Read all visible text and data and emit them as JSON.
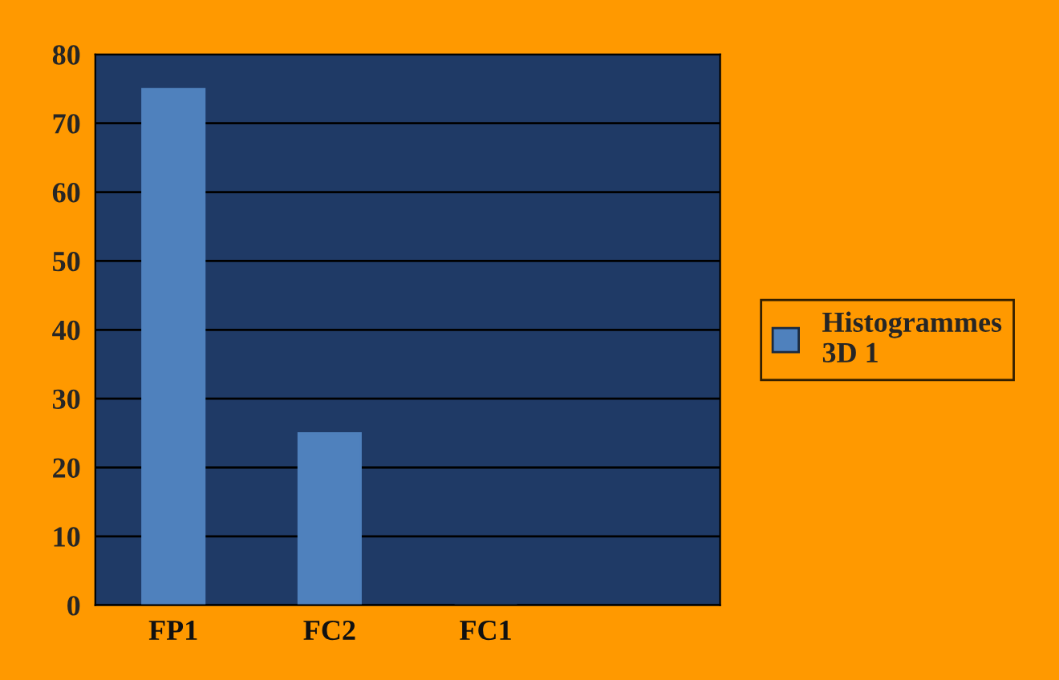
{
  "chart_data": {
    "type": "bar",
    "categories": [
      "FP1",
      "FC2",
      "FC1",
      null
    ],
    "series": [
      {
        "name": "Histogrammes 3D 1",
        "color": "#4f81bd",
        "values": [
          75,
          25,
          0,
          null
        ]
      }
    ],
    "ylim": [
      0,
      80
    ],
    "yticks": [
      0,
      10,
      20,
      30,
      40,
      50,
      60,
      70,
      80
    ],
    "grid": "y",
    "legend": "right"
  }
}
